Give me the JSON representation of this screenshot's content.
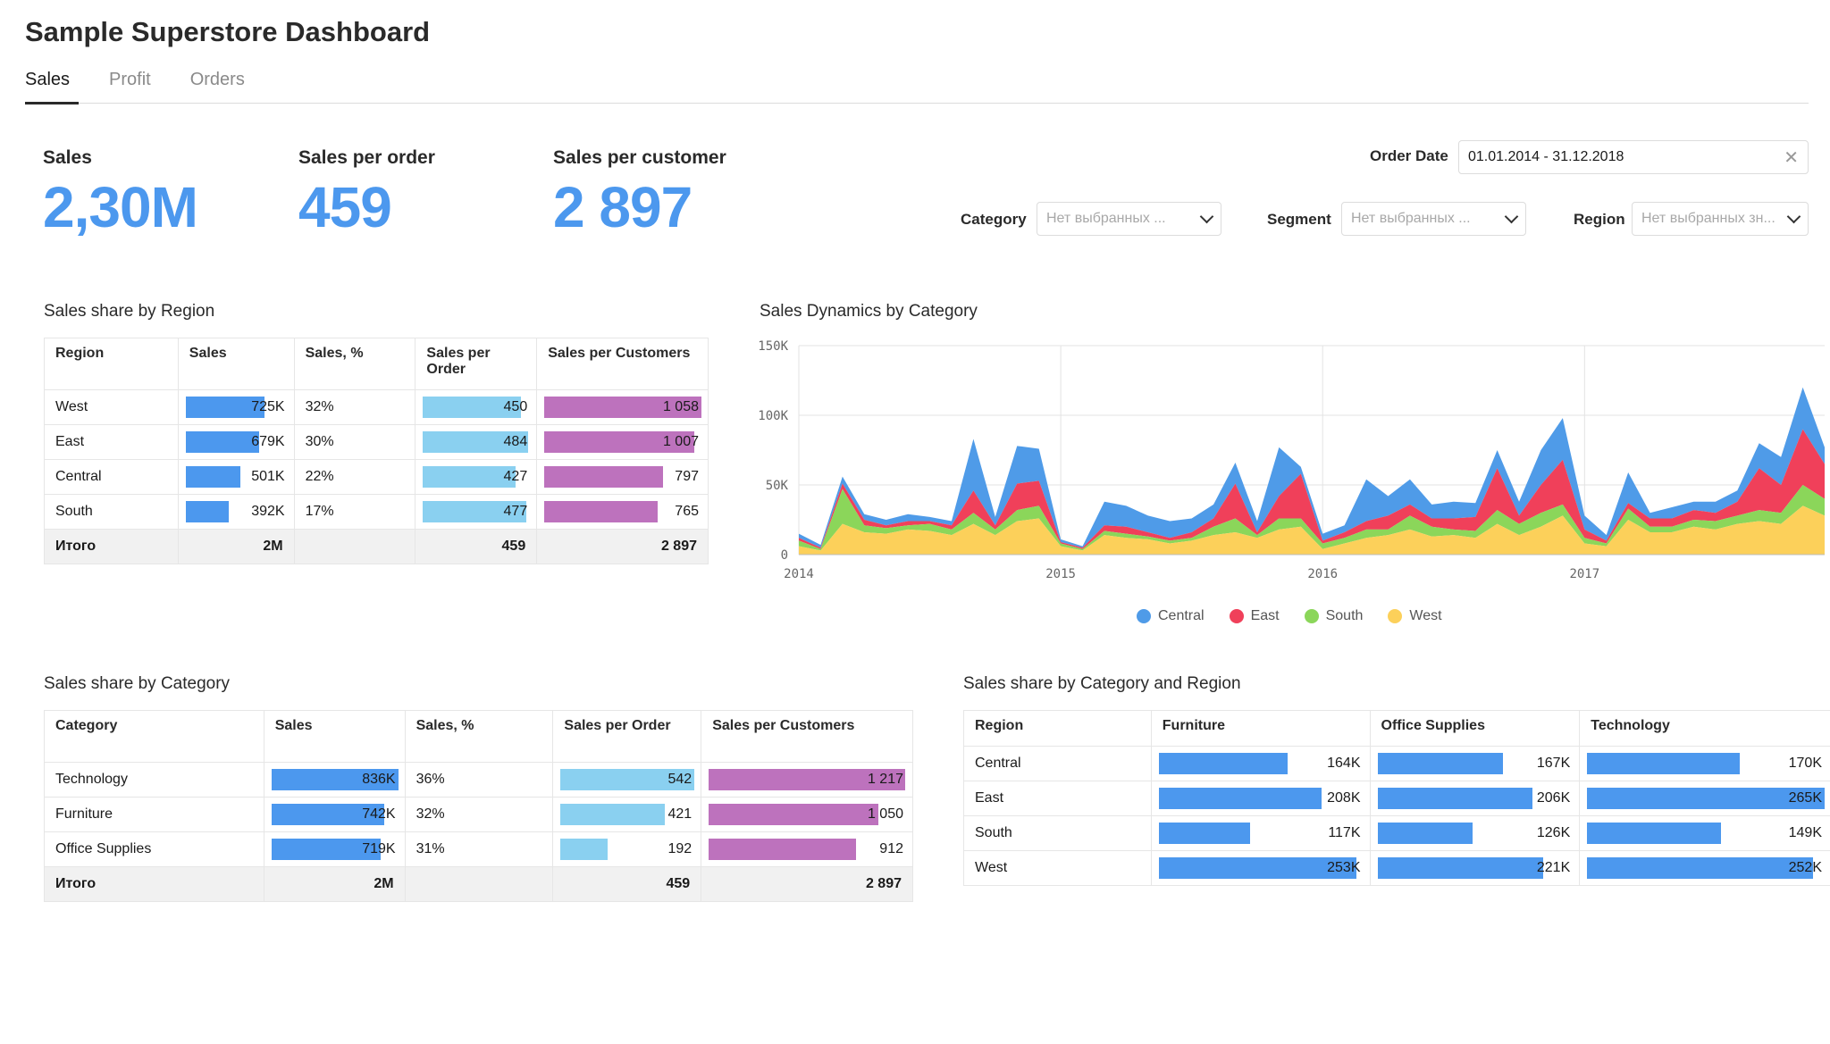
{
  "page": {
    "title": "Sample Superstore Dashboard"
  },
  "tabs": [
    {
      "label": "Sales"
    },
    {
      "label": "Profit"
    },
    {
      "label": "Orders"
    }
  ],
  "kpis": [
    {
      "label": "Sales",
      "value": "2,30M"
    },
    {
      "label": "Sales per order",
      "value": "459"
    },
    {
      "label": "Sales per customer",
      "value": "2 897"
    }
  ],
  "filters": {
    "order_date": {
      "label": "Order Date",
      "value": "01.01.2014 - 31.12.2018"
    },
    "category": {
      "label": "Category",
      "placeholder": "Нет выбранных ..."
    },
    "segment": {
      "label": "Segment",
      "placeholder": "Нет выбранных ..."
    },
    "region": {
      "label": "Region",
      "placeholder": "Нет выбранных зн..."
    }
  },
  "region_table": {
    "title": "Sales share by Region",
    "headers": [
      "Region",
      "Sales",
      "Sales, %",
      "Sales per Order",
      "Sales per Customers"
    ],
    "rows": [
      {
        "name": "West",
        "sales": "725K",
        "sales_v": 725,
        "pct": "32%",
        "spo": "450",
        "spo_v": 450,
        "spc": "1 058",
        "spc_v": 1058
      },
      {
        "name": "East",
        "sales": "679K",
        "sales_v": 679,
        "pct": "30%",
        "spo": "484",
        "spo_v": 484,
        "spc": "1 007",
        "spc_v": 1007
      },
      {
        "name": "Central",
        "sales": "501K",
        "sales_v": 501,
        "pct": "22%",
        "spo": "427",
        "spo_v": 427,
        "spc": "797",
        "spc_v": 797
      },
      {
        "name": "South",
        "sales": "392K",
        "sales_v": 392,
        "pct": "17%",
        "spo": "477",
        "spo_v": 477,
        "spc": "765",
        "spc_v": 765
      }
    ],
    "total": {
      "name": "Итого",
      "sales": "2M",
      "spo": "459",
      "spc": "2 897"
    }
  },
  "category_table": {
    "title": "Sales share by Category",
    "headers": [
      "Category",
      "Sales",
      "Sales, %",
      "Sales per Order",
      "Sales per Customers"
    ],
    "rows": [
      {
        "name": "Technology",
        "sales": "836K",
        "sales_v": 836,
        "pct": "36%",
        "spo": "542",
        "spo_v": 542,
        "spc": "1 217",
        "spc_v": 1217
      },
      {
        "name": "Furniture",
        "sales": "742K",
        "sales_v": 742,
        "pct": "32%",
        "spo": "421",
        "spo_v": 421,
        "spc": "1 050",
        "spc_v": 1050
      },
      {
        "name": "Office Supplies",
        "sales": "719K",
        "sales_v": 719,
        "pct": "31%",
        "spo": "192",
        "spo_v": 192,
        "spc": "912",
        "spc_v": 912
      }
    ],
    "total": {
      "name": "Итого",
      "sales": "2M",
      "spo": "459",
      "spc": "2 897"
    }
  },
  "catreg_table": {
    "title": "Sales share by Category and Region",
    "headers": [
      "Region",
      "Furniture",
      "Office Supplies",
      "Technology"
    ],
    "rows": [
      {
        "name": "Central",
        "f": "164K",
        "f_v": 164,
        "o": "167K",
        "o_v": 167,
        "t": "170K",
        "t_v": 170
      },
      {
        "name": "East",
        "f": "208K",
        "f_v": 208,
        "o": "206K",
        "o_v": 206,
        "t": "265K",
        "t_v": 265
      },
      {
        "name": "South",
        "f": "117K",
        "f_v": 117,
        "o": "126K",
        "o_v": 126,
        "t": "149K",
        "t_v": 149
      },
      {
        "name": "West",
        "f": "253K",
        "f_v": 253,
        "o": "221K",
        "o_v": 221,
        "t": "252K",
        "t_v": 252
      }
    ]
  },
  "chart_data": {
    "type": "area",
    "title": "Sales Dynamics by Category",
    "stacked": true,
    "ylim": [
      0,
      150000
    ],
    "yticks": [
      "150K",
      "100K",
      "50K",
      "0"
    ],
    "xticks": [
      "2014",
      "2015",
      "2016",
      "2017"
    ],
    "x": [
      "2014-01",
      "2014-02",
      "2014-03",
      "2014-04",
      "2014-05",
      "2014-06",
      "2014-07",
      "2014-08",
      "2014-09",
      "2014-10",
      "2014-11",
      "2014-12",
      "2015-01",
      "2015-02",
      "2015-03",
      "2015-04",
      "2015-05",
      "2015-06",
      "2015-07",
      "2015-08",
      "2015-09",
      "2015-10",
      "2015-11",
      "2015-12",
      "2016-01",
      "2016-02",
      "2016-03",
      "2016-04",
      "2016-05",
      "2016-06",
      "2016-07",
      "2016-08",
      "2016-09",
      "2016-10",
      "2016-11",
      "2016-12",
      "2017-01",
      "2017-02",
      "2017-03",
      "2017-04",
      "2017-05",
      "2017-06",
      "2017-07",
      "2017-08",
      "2017-09",
      "2017-10",
      "2017-11",
      "2017-12"
    ],
    "series": [
      {
        "name": "West",
        "color": "#fcd05a",
        "values": [
          6000,
          3000,
          22000,
          16000,
          15000,
          18000,
          17000,
          14000,
          22000,
          14000,
          24000,
          26000,
          6000,
          3000,
          14000,
          12000,
          11000,
          8000,
          10000,
          14000,
          16000,
          12000,
          18000,
          20000,
          4000,
          8000,
          12000,
          14000,
          18000,
          13000,
          14000,
          12000,
          22000,
          14000,
          20000,
          28000,
          8000,
          6000,
          25000,
          16000,
          16000,
          20000,
          18000,
          22000,
          24000,
          22000,
          35000,
          28000
        ]
      },
      {
        "name": "South",
        "color": "#8bd65a",
        "values": [
          4000,
          1000,
          25000,
          5000,
          4000,
          3000,
          5000,
          4000,
          8000,
          4000,
          8000,
          9000,
          2000,
          1000,
          3000,
          3000,
          2000,
          2000,
          2000,
          6000,
          10000,
          2000,
          8000,
          6000,
          4000,
          4000,
          6000,
          4000,
          10000,
          7000,
          4000,
          5000,
          10000,
          8000,
          10000,
          8000,
          4000,
          2000,
          8000,
          4000,
          4000,
          5000,
          6000,
          6000,
          8000,
          8000,
          15000,
          12000
        ]
      },
      {
        "name": "East",
        "color": "#f0405a",
        "values": [
          2000,
          1000,
          4000,
          4000,
          2000,
          3000,
          2000,
          3000,
          16000,
          3000,
          19000,
          18000,
          1000,
          1000,
          4000,
          5000,
          3000,
          2000,
          4000,
          6000,
          25000,
          2000,
          16000,
          32000,
          2000,
          4000,
          6000,
          10000,
          8000,
          6000,
          8000,
          10000,
          30000,
          6000,
          20000,
          32000,
          6000,
          2000,
          4000,
          6000,
          6000,
          7000,
          6000,
          10000,
          30000,
          20000,
          40000,
          25000
        ]
      },
      {
        "name": "Central",
        "color": "#4f9be8",
        "values": [
          3000,
          2000,
          5000,
          4000,
          4000,
          5000,
          3000,
          3000,
          37000,
          6000,
          27000,
          23000,
          2000,
          1000,
          17000,
          15000,
          12000,
          12000,
          10000,
          10000,
          15000,
          8000,
          35000,
          5000,
          5000,
          5000,
          30000,
          14000,
          18000,
          10000,
          12000,
          10000,
          13000,
          10000,
          25000,
          30000,
          10000,
          4000,
          22000,
          4000,
          8000,
          6000,
          8000,
          8000,
          18000,
          20000,
          30000,
          12000
        ]
      }
    ],
    "legend": [
      "Central",
      "East",
      "South",
      "West"
    ],
    "legend_position": "bottom"
  }
}
